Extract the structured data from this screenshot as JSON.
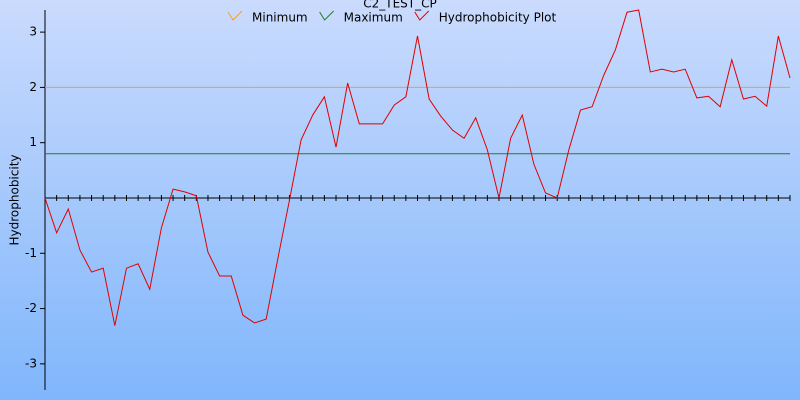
{
  "chart_data": {
    "type": "line",
    "title": "C2_TEST_CP",
    "y_label": "Hydrophobicity",
    "x": [
      1,
      2,
      3,
      4,
      5,
      6,
      7,
      8,
      9,
      10,
      11,
      12,
      13,
      14,
      15,
      16,
      17,
      18,
      19,
      20,
      21,
      22,
      23,
      24,
      25,
      26,
      27,
      28,
      29,
      30,
      31,
      32,
      33,
      34,
      35,
      36,
      37,
      38,
      39,
      40,
      41,
      42,
      43,
      44,
      45,
      46,
      47,
      48,
      49,
      50,
      51,
      52,
      53,
      54,
      55,
      56,
      57,
      58,
      59,
      60,
      61,
      62,
      63,
      64,
      65
    ],
    "xlim": [
      1,
      65
    ],
    "ylim": [
      -3.5,
      3.4
    ],
    "yticks": [
      -3,
      -2,
      -1,
      1,
      2,
      3
    ],
    "series": [
      {
        "name": "Minimum",
        "color": "#f0a030",
        "value": 2.0
      },
      {
        "name": "Maximum",
        "color": "#208020",
        "value": 0.8
      },
      {
        "name": "Hydrophobicity Plot",
        "color": "#e00000",
        "values": [
          0,
          -0.63,
          -0.2,
          -0.94,
          -1.34,
          -1.27,
          -2.31,
          -1.27,
          -1.19,
          -1.65,
          -0.54,
          0.16,
          0.11,
          0.04,
          -0.98,
          -1.41,
          -1.41,
          -2.12,
          -2.26,
          -2.19,
          -1.1,
          -0.04,
          1.05,
          1.5,
          1.83,
          0.92,
          2.08,
          1.34,
          1.34,
          1.34,
          1.68,
          1.83,
          2.93,
          1.79,
          1.48,
          1.23,
          1.08,
          1.45,
          0.87,
          0,
          1.08,
          1.5,
          0.61,
          0.09,
          0,
          0.87,
          1.59,
          1.65,
          2.22,
          2.68,
          3.36,
          3.4,
          2.28,
          2.33,
          2.28,
          2.33,
          1.81,
          1.84,
          1.65,
          2.5,
          1.79,
          1.84,
          1.66,
          2.93,
          2.17
        ]
      }
    ]
  }
}
